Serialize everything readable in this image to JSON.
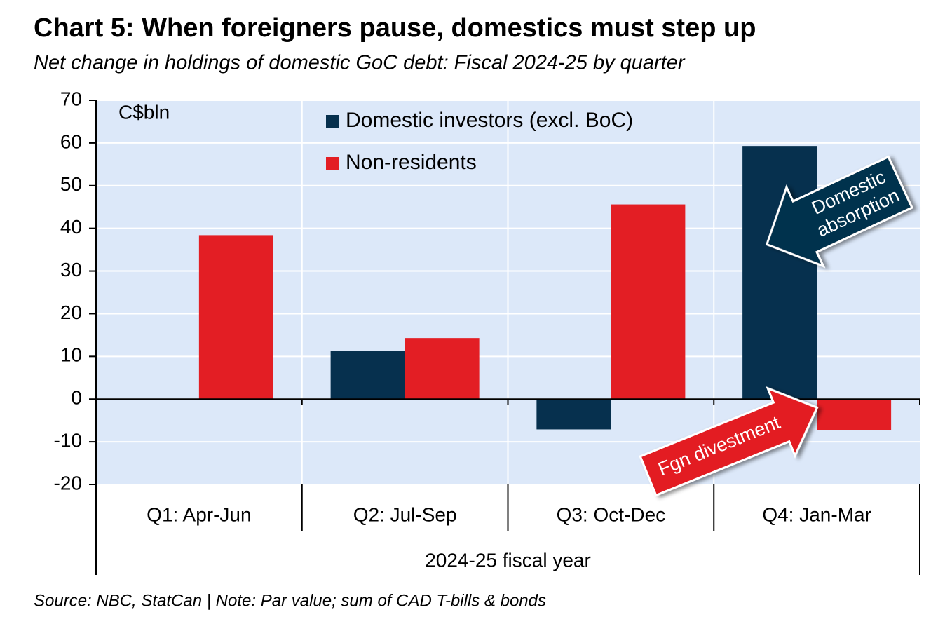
{
  "chart_data": {
    "type": "bar",
    "title": "Chart 5: When foreigners pause, domestics must step up",
    "subtitle": "Net change in holdings of domestic GoC debt: Fiscal 2024-25 by quarter",
    "y_unit": "C$bln",
    "categories": [
      "Q1: Apr-Jun",
      "Q2: Jul-Sep",
      "Q3: Oct-Dec",
      "Q4: Jan-Mar"
    ],
    "x_group_label": "2024-25 fiscal year",
    "series": [
      {
        "name": "Domestic investors (excl. BoC)",
        "color": "#06304e",
        "values": [
          0,
          11.3,
          -7.1,
          59.3
        ]
      },
      {
        "name": "Non-residents",
        "color": "#e31e24",
        "values": [
          38.4,
          14.3,
          45.6,
          -7.2
        ]
      }
    ],
    "ylim": [
      -20,
      70
    ],
    "yticks": [
      -20,
      -10,
      0,
      10,
      20,
      30,
      40,
      50,
      60,
      70
    ],
    "grid": true,
    "legend": "top-center",
    "plot_background": "#dce8f9",
    "annotations": [
      {
        "lines": [
          "Domestic",
          "absorption"
        ],
        "color": "#06304e"
      },
      {
        "lines": [
          "Fgn divestment"
        ],
        "color": "#e31e24"
      }
    ],
    "source": "Source: NBC, StatCan | Note: Par value; sum of CAD T-bills & bonds"
  }
}
